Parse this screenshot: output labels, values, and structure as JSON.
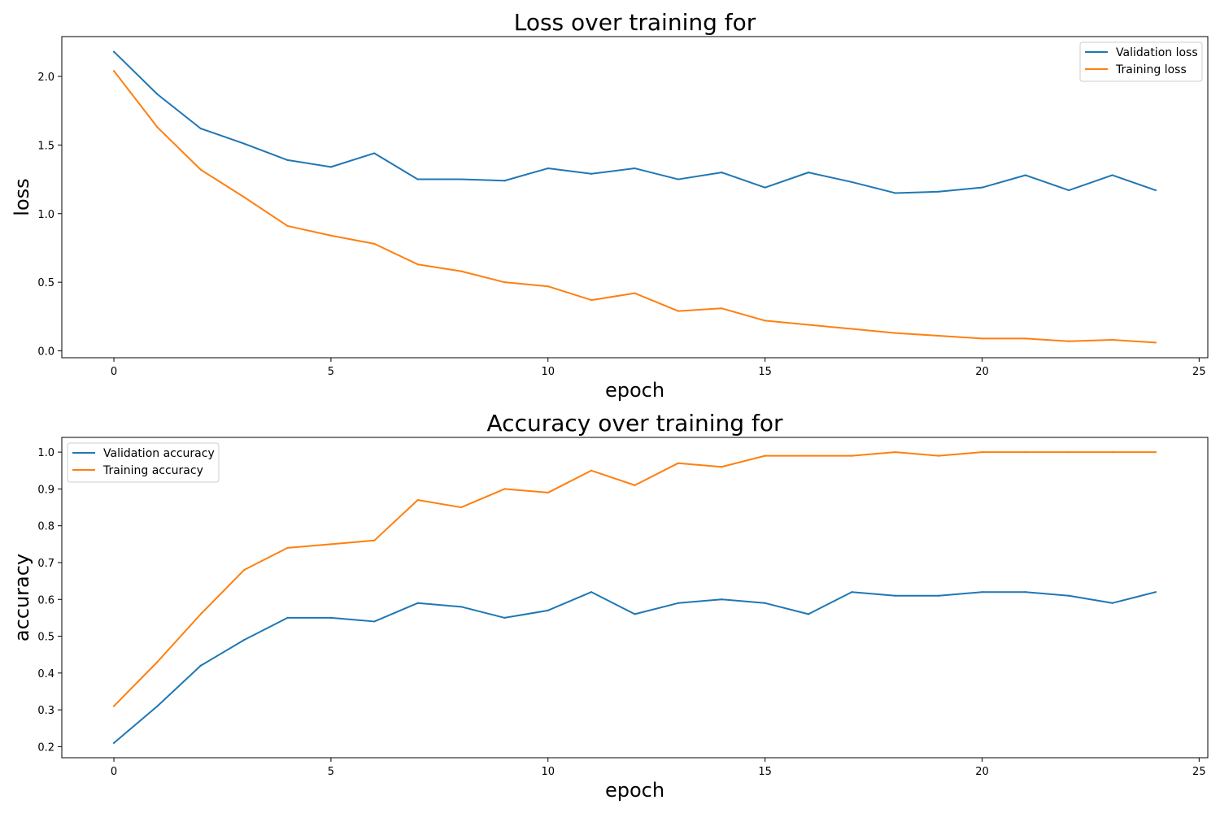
{
  "chart_data": [
    {
      "type": "line",
      "title": "Loss over training for",
      "xlabel": "epoch",
      "ylabel": "loss",
      "xlim": [
        -1.2,
        25.2
      ],
      "ylim": [
        -0.05,
        2.29
      ],
      "xticks": [
        0,
        5,
        10,
        15,
        20,
        25
      ],
      "yticks": [
        0.0,
        0.5,
        1.0,
        1.5,
        2.0
      ],
      "ytick_decimals": 1,
      "legend_position": "top-right",
      "grid": false,
      "x": [
        0,
        1,
        2,
        3,
        4,
        5,
        6,
        7,
        8,
        9,
        10,
        11,
        12,
        13,
        14,
        15,
        16,
        17,
        18,
        19,
        20,
        21,
        22,
        23,
        24
      ],
      "series": [
        {
          "name": "Validation loss",
          "color": "#1f77b4",
          "values": [
            2.18,
            1.87,
            1.62,
            1.51,
            1.39,
            1.34,
            1.44,
            1.25,
            1.25,
            1.24,
            1.33,
            1.29,
            1.33,
            1.25,
            1.3,
            1.19,
            1.3,
            1.23,
            1.15,
            1.16,
            1.19,
            1.28,
            1.17,
            1.28,
            1.17
          ]
        },
        {
          "name": "Training loss",
          "color": "#ff7f0e",
          "values": [
            2.04,
            1.63,
            1.32,
            1.12,
            0.91,
            0.84,
            0.78,
            0.63,
            0.58,
            0.5,
            0.47,
            0.37,
            0.42,
            0.29,
            0.31,
            0.22,
            0.19,
            0.16,
            0.13,
            0.11,
            0.09,
            0.09,
            0.07,
            0.08,
            0.06
          ]
        }
      ]
    },
    {
      "type": "line",
      "title": "Accuracy over training for",
      "xlabel": "epoch",
      "ylabel": "accuracy",
      "xlim": [
        -1.2,
        25.2
      ],
      "ylim": [
        0.17,
        1.04
      ],
      "xticks": [
        0,
        5,
        10,
        15,
        20,
        25
      ],
      "yticks": [
        0.2,
        0.3,
        0.4,
        0.5,
        0.6,
        0.7,
        0.8,
        0.9,
        1.0
      ],
      "ytick_decimals": 1,
      "legend_position": "top-left",
      "grid": false,
      "x": [
        0,
        1,
        2,
        3,
        4,
        5,
        6,
        7,
        8,
        9,
        10,
        11,
        12,
        13,
        14,
        15,
        16,
        17,
        18,
        19,
        20,
        21,
        22,
        23,
        24
      ],
      "series": [
        {
          "name": "Validation accuracy",
          "color": "#1f77b4",
          "values": [
            0.21,
            0.31,
            0.42,
            0.49,
            0.55,
            0.55,
            0.54,
            0.59,
            0.58,
            0.55,
            0.57,
            0.62,
            0.56,
            0.59,
            0.6,
            0.59,
            0.56,
            0.62,
            0.61,
            0.61,
            0.62,
            0.62,
            0.61,
            0.59,
            0.62
          ]
        },
        {
          "name": "Training accuracy",
          "color": "#ff7f0e",
          "values": [
            0.31,
            0.43,
            0.56,
            0.68,
            0.74,
            0.75,
            0.76,
            0.87,
            0.85,
            0.9,
            0.89,
            0.95,
            0.91,
            0.97,
            0.96,
            0.99,
            0.99,
            0.99,
            1.0,
            0.99,
            1.0,
            1.0,
            1.0,
            1.0,
            1.0
          ]
        }
      ]
    }
  ]
}
